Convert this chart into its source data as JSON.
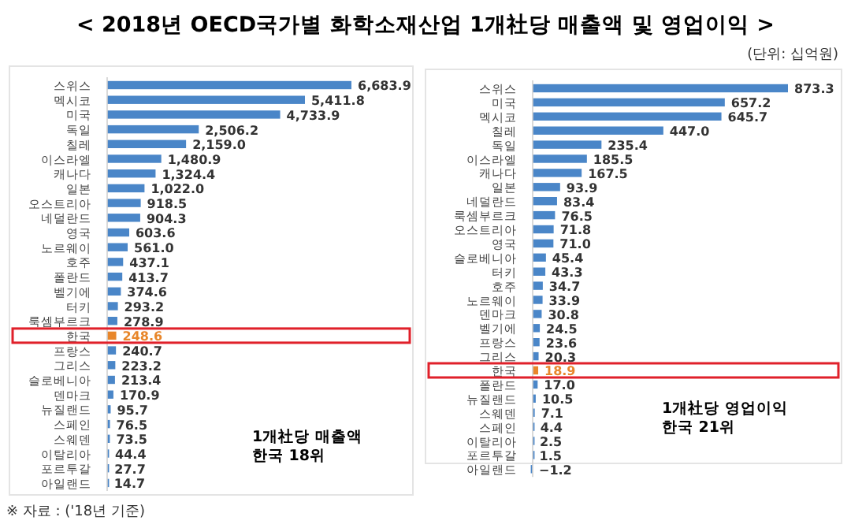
{
  "chart_data": [
    {
      "type": "bar",
      "orientation": "horizontal",
      "title": "< 2018년 OECD국가별 화학소재산업 1개社당 매출액 및 영업이익 >",
      "categories": [
        "스위스",
        "멕시코",
        "미국",
        "독일",
        "칠레",
        "이스라엘",
        "캐나다",
        "일본",
        "오스트리아",
        "네덜란드",
        "영국",
        "노르웨이",
        "호주",
        "폴란드",
        "벨기에",
        "터키",
        "룩셈부르크",
        "한국",
        "프랑스",
        "그리스",
        "슬로베니아",
        "덴마크",
        "뉴질랜드",
        "스페인",
        "스웨덴",
        "이탈리아",
        "포르투갈",
        "아일랜드"
      ],
      "values": [
        6683.9,
        5411.8,
        4733.9,
        2506.2,
        2159.0,
        1480.9,
        1324.4,
        1022.0,
        918.5,
        904.3,
        603.6,
        561.0,
        437.1,
        413.7,
        374.6,
        293.2,
        278.9,
        248.6,
        240.7,
        223.2,
        213.4,
        170.9,
        95.7,
        76.5,
        73.5,
        44.4,
        27.7,
        14.7
      ],
      "value_labels": [
        "6,683.9",
        "5,411.8",
        "4,733.9",
        "2,506.2",
        "2,159.0",
        "1,480.9",
        "1,324.4",
        "1,022.0",
        "918.5",
        "904.3",
        "603.6",
        "561.0",
        "437.1",
        "413.7",
        "374.6",
        "293.2",
        "278.9",
        "248.6",
        "240.7",
        "223.2",
        "213.4",
        "170.9",
        "95.7",
        "76.5",
        "73.5",
        "44.4",
        "27.7",
        "14.7"
      ],
      "colors": [
        "#4a86c8",
        "#4a86c8",
        "#4a86c8",
        "#4a86c8",
        "#4a86c8",
        "#4a86c8",
        "#4a86c8",
        "#4a86c8",
        "#4a86c8",
        "#4a86c8",
        "#4a86c8",
        "#4a86c8",
        "#4a86c8",
        "#4a86c8",
        "#4a86c8",
        "#4a86c8",
        "#4a86c8",
        "#e8862a",
        "#4a86c8",
        "#4a86c8",
        "#4a86c8",
        "#4a86c8",
        "#4a86c8",
        "#4a86c8",
        "#4a86c8",
        "#4a86c8",
        "#4a86c8",
        "#4a86c8"
      ],
      "annotations": [
        "1개社당 매출액\n한국 18위",
        "※ 자료 : ('18년 기준)"
      ]
    },
    {
      "type": "bar",
      "orientation": "horizontal",
      "subtitle": "(단위: 십억원)",
      "categories": [
        "스위스",
        "미국",
        "멕시코",
        "칠레",
        "독일",
        "이스라엘",
        "캐나다",
        "일본",
        "네덜란드",
        "룩셈부르크",
        "오스트리아",
        "영국",
        "슬로베니아",
        "터키",
        "호주",
        "노르웨이",
        "덴마크",
        "벨기에",
        "프랑스",
        "그리스",
        "한국",
        "폴란드",
        "뉴질랜드",
        "스웨덴",
        "스페인",
        "이탈리아",
        "포르투갈",
        "아일랜드"
      ],
      "values": [
        873.3,
        657.2,
        645.7,
        447.0,
        235.4,
        185.5,
        167.5,
        93.9,
        83.4,
        76.5,
        71.8,
        71.0,
        45.4,
        43.3,
        34.7,
        33.9,
        30.8,
        24.5,
        23.6,
        20.3,
        18.9,
        17.0,
        10.5,
        7.1,
        4.4,
        2.5,
        1.5,
        -1.2
      ],
      "value_labels": [
        "873.3",
        "657.2",
        "645.7",
        "447.0",
        "235.4",
        "185.5",
        "167.5",
        "93.9",
        "83.4",
        "76.5",
        "71.8",
        "71.0",
        "45.4",
        "43.3",
        "34.7",
        "33.9",
        "30.8",
        "24.5",
        "23.6",
        "20.3",
        "18.9",
        "17.0",
        "10.5",
        "7.1",
        "4.4",
        "2.5",
        "1.5",
        "−1.2"
      ],
      "colors": [
        "#4a86c8",
        "#4a86c8",
        "#4a86c8",
        "#4a86c8",
        "#4a86c8",
        "#4a86c8",
        "#4a86c8",
        "#4a86c8",
        "#4a86c8",
        "#4a86c8",
        "#4a86c8",
        "#4a86c8",
        "#4a86c8",
        "#4a86c8",
        "#4a86c8",
        "#4a86c8",
        "#4a86c8",
        "#4a86c8",
        "#4a86c8",
        "#4a86c8",
        "#e8862a",
        "#4a86c8",
        "#4a86c8",
        "#4a86c8",
        "#4a86c8",
        "#4a86c8",
        "#4a86c8",
        "#4a86c8"
      ],
      "annotations": [
        "1개社당 영업이익\n한국 21위"
      ]
    }
  ]
}
